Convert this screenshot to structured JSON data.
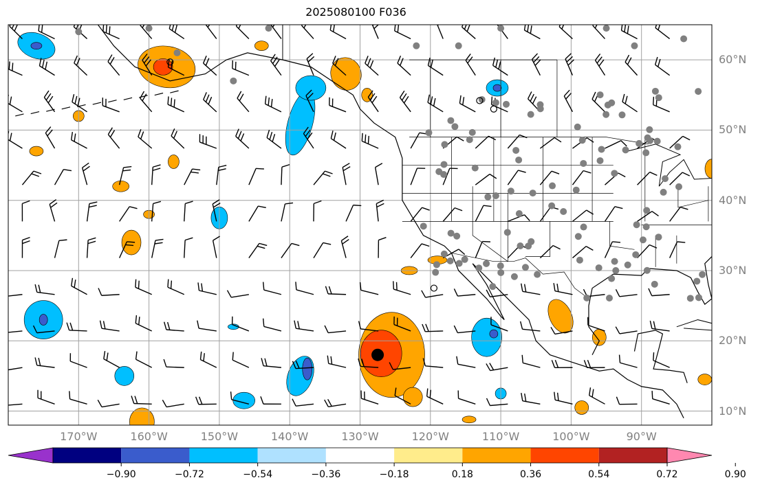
{
  "title": "2025080100 F036",
  "lat_labels": [
    "60°N",
    "50°N",
    "40°N",
    "30°N",
    "20°N",
    "10°N"
  ],
  "lon_labels": [
    "170°W",
    "160°W",
    "150°W",
    "140°W",
    "130°W",
    "120°W",
    "110°W",
    "100°W",
    "90°W"
  ],
  "colorbar": {
    "tick_labels": [
      "−0.90",
      "−0.72",
      "−0.54",
      "−0.36",
      "−0.18",
      "0.18",
      "0.36",
      "0.54",
      "0.72",
      "0.90"
    ],
    "colors": [
      "#9932cc",
      "#000080",
      "#3a5ccc",
      "#00bfff",
      "#afe1ff",
      "#ffffff",
      "#ffec8b",
      "#ffa500",
      "#ff4500",
      "#b22222",
      "#ff88b0"
    ]
  },
  "map": {
    "lon_range": [
      -180,
      -80
    ],
    "lat_range": [
      8,
      65
    ],
    "gridline_color": "#a0a0a0",
    "station_color": "#808080",
    "storm_center": {
      "lon": -127.5,
      "lat": 18
    },
    "contour_colors": {
      "pos_light": "#ffa500",
      "pos_mid": "#ff4500",
      "pos_high": "#b22222",
      "neg_light": "#00bfff",
      "neg_mid": "#3a5ccc",
      "neg_high": "#000080"
    }
  }
}
